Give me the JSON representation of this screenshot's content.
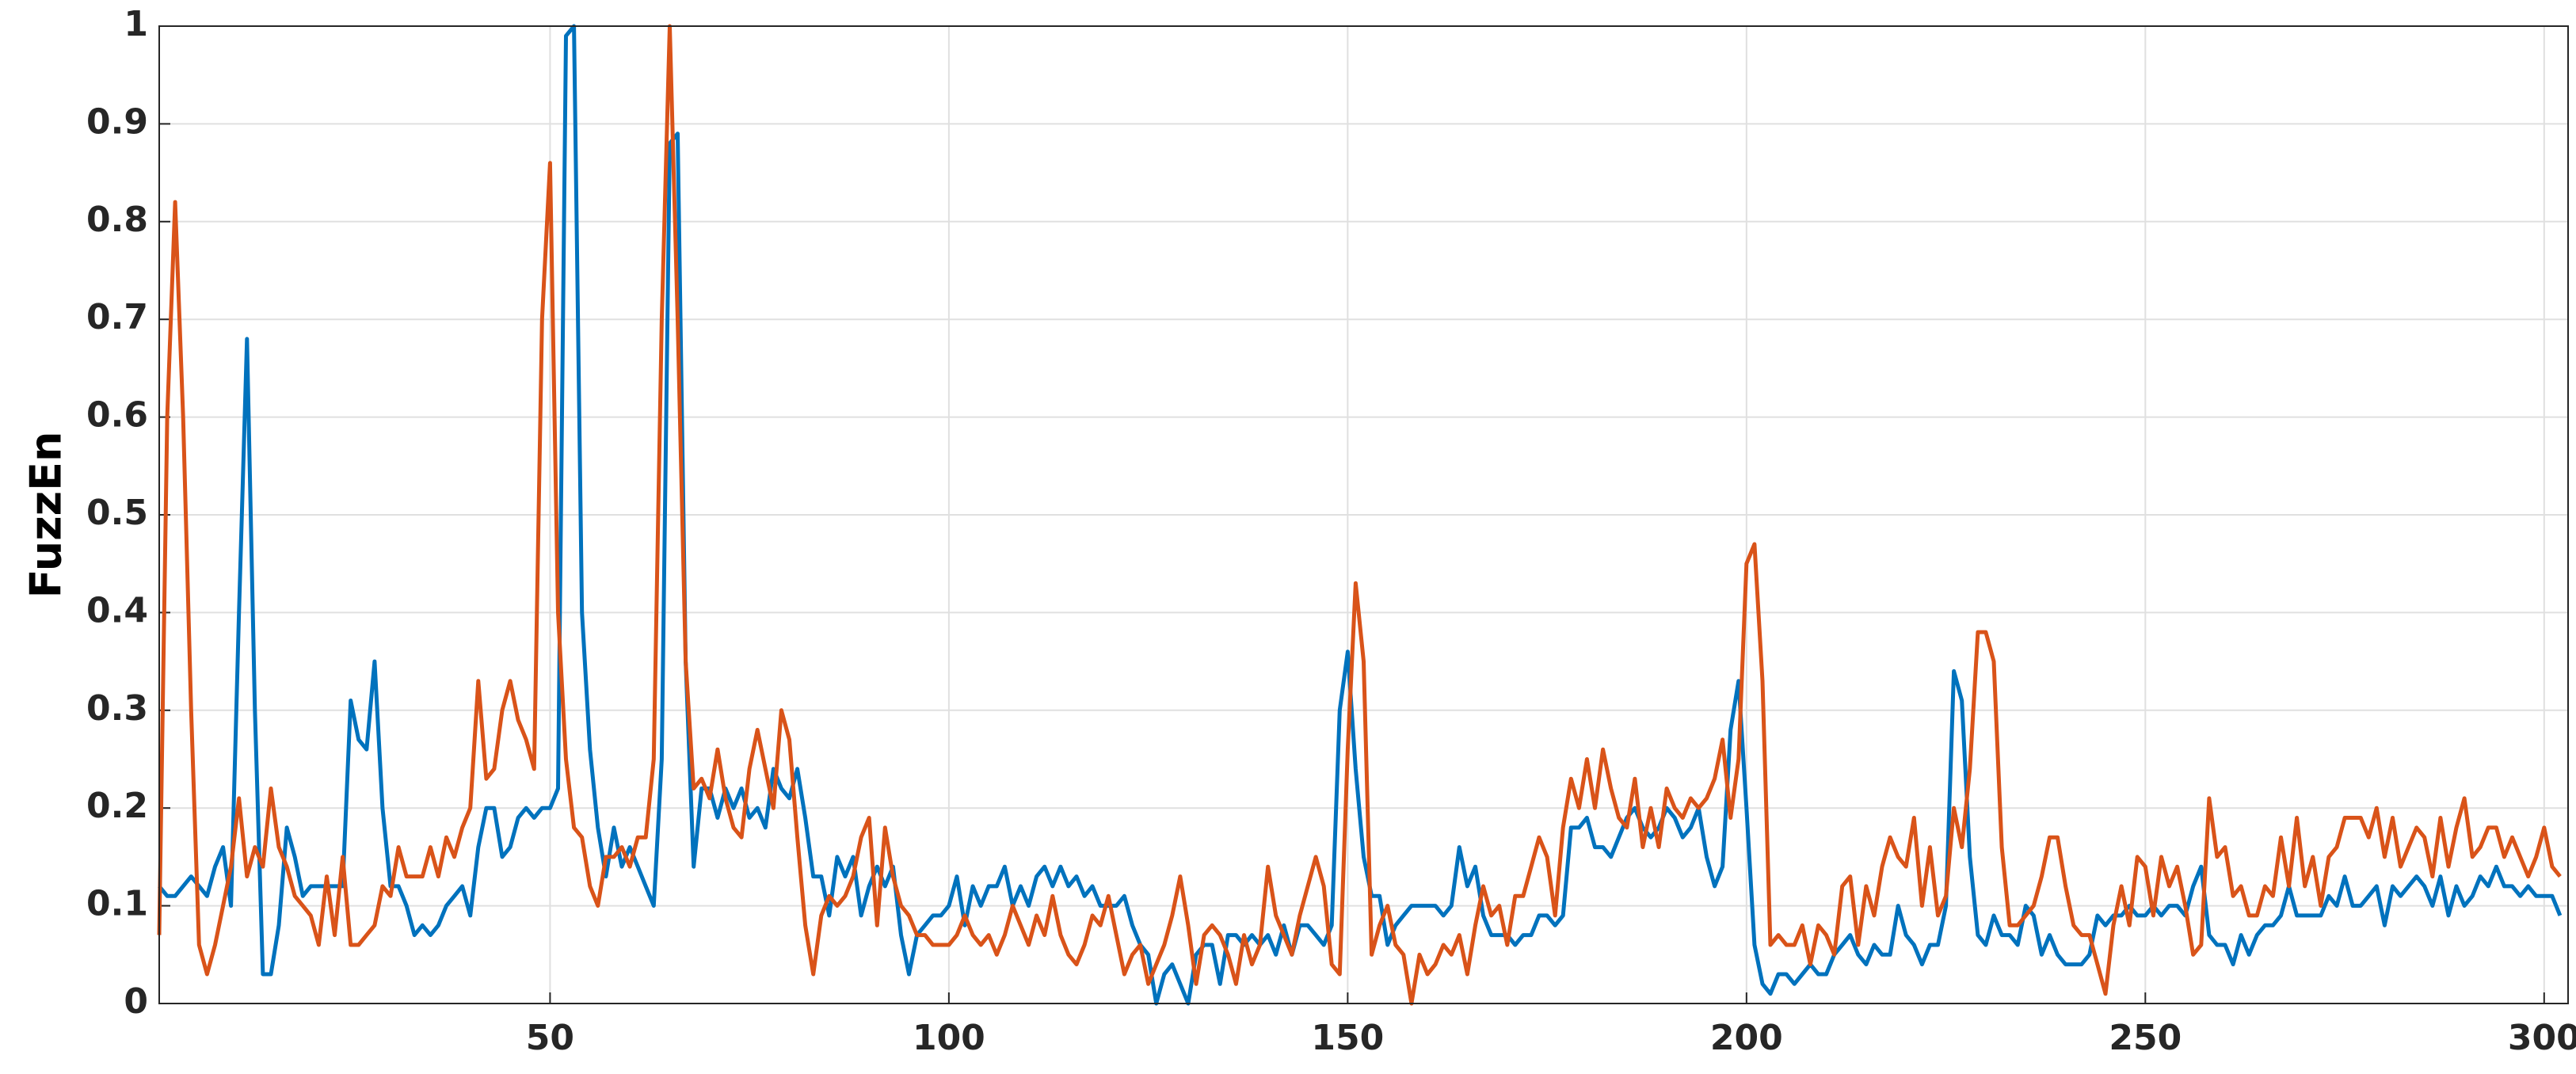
{
  "chart_data": {
    "type": "line",
    "ylabel": "FuzzEn",
    "x": [
      1,
      2,
      3,
      4,
      5,
      6,
      7,
      8,
      9,
      10,
      11,
      12,
      13,
      14,
      15,
      16,
      17,
      18,
      19,
      20,
      21,
      22,
      23,
      24,
      25,
      26,
      27,
      28,
      29,
      30,
      31,
      32,
      33,
      34,
      35,
      36,
      37,
      38,
      39,
      40,
      41,
      42,
      43,
      44,
      45,
      46,
      47,
      48,
      49,
      50,
      51,
      52,
      53,
      54,
      55,
      56,
      57,
      58,
      59,
      60,
      61,
      62,
      63,
      64,
      65,
      66,
      67,
      68,
      69,
      70,
      71,
      72,
      73,
      74,
      75,
      76,
      77,
      78,
      79,
      80,
      81,
      82,
      83,
      84,
      85,
      86,
      87,
      88,
      89,
      90,
      91,
      92,
      93,
      94,
      95,
      96,
      97,
      98,
      99,
      100,
      101,
      102,
      103,
      104,
      105,
      106,
      107,
      108,
      109,
      110,
      111,
      112,
      113,
      114,
      115,
      116,
      117,
      118,
      119,
      120,
      121,
      122,
      123,
      124,
      125,
      126,
      127,
      128,
      129,
      130,
      131,
      132,
      133,
      134,
      135,
      136,
      137,
      138,
      139,
      140,
      141,
      142,
      143,
      144,
      145,
      146,
      147,
      148,
      149,
      150,
      151,
      152,
      153,
      154,
      155,
      156,
      157,
      158,
      159,
      160,
      161,
      162,
      163,
      164,
      165,
      166,
      167,
      168,
      169,
      170,
      171,
      172,
      173,
      174,
      175,
      176,
      177,
      178,
      179,
      180,
      181,
      182,
      183,
      184,
      185,
      186,
      187,
      188,
      189,
      190,
      191,
      192,
      193,
      194,
      195,
      196,
      197,
      198,
      199,
      200,
      201,
      202,
      203,
      204,
      205,
      206,
      207,
      208,
      209,
      210,
      211,
      212,
      213,
      214,
      215,
      216,
      217,
      218,
      219,
      220,
      221,
      222,
      223,
      224,
      225,
      226,
      227,
      228,
      229,
      230,
      231,
      232,
      233,
      234,
      235,
      236,
      237,
      238,
      239,
      240,
      241,
      242,
      243,
      244,
      245,
      246,
      247,
      248,
      249,
      250,
      251,
      252,
      253,
      254,
      255,
      256,
      257,
      258,
      259,
      260,
      261,
      262,
      263,
      264,
      265,
      266,
      267,
      268,
      269,
      270,
      271,
      272,
      273,
      274,
      275,
      276,
      277,
      278,
      279,
      280,
      281,
      282,
      283,
      284,
      285,
      286,
      287,
      288,
      289,
      290,
      291,
      292,
      293,
      294,
      295,
      296,
      297,
      298,
      299,
      300,
      301,
      302
    ],
    "series": [
      {
        "color": "#0072bd",
        "values": [
          0.12,
          0.11,
          0.11,
          0.12,
          0.13,
          0.12,
          0.11,
          0.14,
          0.16,
          0.1,
          0.4,
          0.68,
          0.3,
          0.03,
          0.03,
          0.08,
          0.18,
          0.15,
          0.11,
          0.12,
          0.12,
          0.12,
          0.12,
          0.12,
          0.31,
          0.27,
          0.26,
          0.35,
          0.2,
          0.12,
          0.12,
          0.1,
          0.07,
          0.08,
          0.07,
          0.08,
          0.1,
          0.11,
          0.12,
          0.09,
          0.16,
          0.2,
          0.2,
          0.15,
          0.16,
          0.19,
          0.2,
          0.19,
          0.2,
          0.2,
          0.22,
          0.99,
          1.0,
          0.4,
          0.26,
          0.18,
          0.13,
          0.18,
          0.14,
          0.16,
          0.14,
          0.12,
          0.1,
          0.25,
          0.88,
          0.89,
          0.35,
          0.14,
          0.22,
          0.22,
          0.19,
          0.22,
          0.2,
          0.22,
          0.19,
          0.2,
          0.18,
          0.24,
          0.22,
          0.21,
          0.24,
          0.19,
          0.13,
          0.13,
          0.09,
          0.15,
          0.13,
          0.15,
          0.09,
          0.12,
          0.14,
          0.12,
          0.14,
          0.07,
          0.03,
          0.07,
          0.08,
          0.09,
          0.09,
          0.1,
          0.13,
          0.08,
          0.12,
          0.1,
          0.12,
          0.12,
          0.14,
          0.1,
          0.12,
          0.1,
          0.13,
          0.14,
          0.12,
          0.14,
          0.12,
          0.13,
          0.11,
          0.12,
          0.1,
          0.1,
          0.1,
          0.11,
          0.08,
          0.06,
          0.05,
          0.0,
          0.03,
          0.04,
          0.02,
          0.0,
          0.05,
          0.06,
          0.06,
          0.02,
          0.07,
          0.07,
          0.06,
          0.07,
          0.06,
          0.07,
          0.05,
          0.08,
          0.05,
          0.08,
          0.08,
          0.07,
          0.06,
          0.08,
          0.3,
          0.36,
          0.24,
          0.15,
          0.11,
          0.11,
          0.06,
          0.08,
          0.09,
          0.1,
          0.1,
          0.1,
          0.1,
          0.09,
          0.1,
          0.16,
          0.12,
          0.14,
          0.09,
          0.07,
          0.07,
          0.07,
          0.06,
          0.07,
          0.07,
          0.09,
          0.09,
          0.08,
          0.09,
          0.18,
          0.18,
          0.19,
          0.16,
          0.16,
          0.15,
          0.17,
          0.19,
          0.2,
          0.18,
          0.17,
          0.18,
          0.2,
          0.19,
          0.17,
          0.18,
          0.2,
          0.15,
          0.12,
          0.14,
          0.28,
          0.33,
          0.2,
          0.06,
          0.02,
          0.01,
          0.03,
          0.03,
          0.02,
          0.03,
          0.04,
          0.03,
          0.03,
          0.05,
          0.06,
          0.07,
          0.05,
          0.04,
          0.06,
          0.05,
          0.05,
          0.1,
          0.07,
          0.06,
          0.04,
          0.06,
          0.06,
          0.1,
          0.34,
          0.31,
          0.15,
          0.07,
          0.06,
          0.09,
          0.07,
          0.07,
          0.06,
          0.1,
          0.09,
          0.05,
          0.07,
          0.05,
          0.04,
          0.04,
          0.04,
          0.05,
          0.09,
          0.08,
          0.09,
          0.09,
          0.1,
          0.09,
          0.09,
          0.1,
          0.09,
          0.1,
          0.1,
          0.09,
          0.12,
          0.14,
          0.07,
          0.06,
          0.06,
          0.04,
          0.07,
          0.05,
          0.07,
          0.08,
          0.08,
          0.09,
          0.12,
          0.09,
          0.09,
          0.09,
          0.09,
          0.11,
          0.1,
          0.13,
          0.1,
          0.1,
          0.11,
          0.12,
          0.08,
          0.12,
          0.11,
          0.12,
          0.13,
          0.12,
          0.1,
          0.13,
          0.09,
          0.12,
          0.1,
          0.11,
          0.13,
          0.12,
          0.14,
          0.12,
          0.12,
          0.11,
          0.12,
          0.11,
          0.11,
          0.11,
          0.09
        ]
      },
      {
        "color": "#d95319",
        "values": [
          0.07,
          0.6,
          0.82,
          0.6,
          0.3,
          0.06,
          0.03,
          0.06,
          0.1,
          0.14,
          0.21,
          0.13,
          0.16,
          0.14,
          0.22,
          0.16,
          0.14,
          0.11,
          0.1,
          0.09,
          0.06,
          0.13,
          0.07,
          0.15,
          0.06,
          0.06,
          0.07,
          0.08,
          0.12,
          0.11,
          0.16,
          0.13,
          0.13,
          0.13,
          0.16,
          0.13,
          0.17,
          0.15,
          0.18,
          0.2,
          0.33,
          0.23,
          0.24,
          0.3,
          0.33,
          0.29,
          0.27,
          0.24,
          0.7,
          0.86,
          0.4,
          0.25,
          0.18,
          0.17,
          0.12,
          0.1,
          0.15,
          0.15,
          0.16,
          0.14,
          0.17,
          0.17,
          0.25,
          0.7,
          1.0,
          0.7,
          0.35,
          0.22,
          0.23,
          0.21,
          0.26,
          0.21,
          0.18,
          0.17,
          0.24,
          0.28,
          0.24,
          0.2,
          0.3,
          0.27,
          0.17,
          0.08,
          0.03,
          0.09,
          0.11,
          0.1,
          0.11,
          0.13,
          0.17,
          0.19,
          0.08,
          0.18,
          0.13,
          0.1,
          0.09,
          0.07,
          0.07,
          0.06,
          0.06,
          0.06,
          0.07,
          0.09,
          0.07,
          0.06,
          0.07,
          0.05,
          0.07,
          0.1,
          0.08,
          0.06,
          0.09,
          0.07,
          0.11,
          0.07,
          0.05,
          0.04,
          0.06,
          0.09,
          0.08,
          0.11,
          0.07,
          0.03,
          0.05,
          0.06,
          0.02,
          0.04,
          0.06,
          0.09,
          0.13,
          0.08,
          0.02,
          0.07,
          0.08,
          0.07,
          0.05,
          0.02,
          0.07,
          0.04,
          0.06,
          0.14,
          0.09,
          0.07,
          0.05,
          0.09,
          0.12,
          0.15,
          0.12,
          0.04,
          0.03,
          0.26,
          0.43,
          0.35,
          0.05,
          0.08,
          0.1,
          0.06,
          0.05,
          0.0,
          0.05,
          0.03,
          0.04,
          0.06,
          0.05,
          0.07,
          0.03,
          0.08,
          0.12,
          0.09,
          0.1,
          0.06,
          0.11,
          0.11,
          0.14,
          0.17,
          0.15,
          0.09,
          0.18,
          0.23,
          0.2,
          0.25,
          0.2,
          0.26,
          0.22,
          0.19,
          0.18,
          0.23,
          0.16,
          0.2,
          0.16,
          0.22,
          0.2,
          0.19,
          0.21,
          0.2,
          0.21,
          0.23,
          0.27,
          0.19,
          0.25,
          0.45,
          0.47,
          0.33,
          0.06,
          0.07,
          0.06,
          0.06,
          0.08,
          0.04,
          0.08,
          0.07,
          0.05,
          0.12,
          0.13,
          0.06,
          0.12,
          0.09,
          0.14,
          0.17,
          0.15,
          0.14,
          0.19,
          0.1,
          0.16,
          0.09,
          0.11,
          0.2,
          0.16,
          0.24,
          0.38,
          0.38,
          0.35,
          0.16,
          0.08,
          0.08,
          0.09,
          0.1,
          0.13,
          0.17,
          0.17,
          0.12,
          0.08,
          0.07,
          0.07,
          0.04,
          0.01,
          0.08,
          0.12,
          0.08,
          0.15,
          0.14,
          0.09,
          0.15,
          0.12,
          0.14,
          0.1,
          0.05,
          0.06,
          0.21,
          0.15,
          0.16,
          0.11,
          0.12,
          0.09,
          0.09,
          0.12,
          0.11,
          0.17,
          0.12,
          0.19,
          0.12,
          0.15,
          0.1,
          0.15,
          0.16,
          0.19,
          0.19,
          0.19,
          0.17,
          0.2,
          0.15,
          0.19,
          0.14,
          0.16,
          0.18,
          0.17,
          0.13,
          0.19,
          0.14,
          0.18,
          0.21,
          0.15,
          0.16,
          0.18,
          0.18,
          0.15,
          0.17,
          0.15,
          0.13,
          0.15,
          0.18,
          0.14,
          0.13
        ]
      }
    ],
    "xlim": [
      1,
      303
    ],
    "xticks": [
      50,
      100,
      150,
      200,
      250,
      300
    ],
    "ylim": [
      0,
      1
    ],
    "yticks": [
      0,
      0.1,
      0.2,
      0.3,
      0.4,
      0.5,
      0.6,
      0.7,
      0.8,
      0.9,
      1
    ],
    "grid": true
  }
}
